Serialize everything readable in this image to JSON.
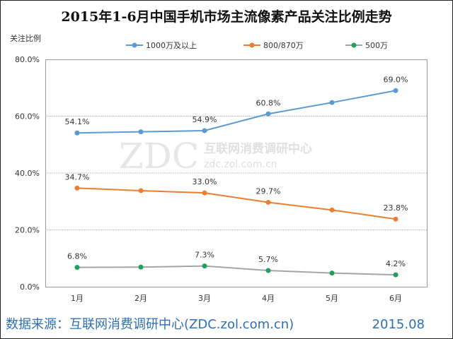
{
  "chart_data": {
    "type": "line",
    "title": "2015年1-6月中国手机市场主流像素产品关注比例走势",
    "ylabel": "关注比例",
    "xlabel": "",
    "categories": [
      "1月",
      "2月",
      "3月",
      "4月",
      "5月",
      "6月"
    ],
    "ylim": [
      0,
      80
    ],
    "yticks": [
      "0.0%",
      "20.0%",
      "40.0%",
      "60.0%",
      "80.0%"
    ],
    "series": [
      {
        "name": "1000万及以上",
        "color": "#5b9bd5",
        "values": [
          54.1,
          54.5,
          54.9,
          60.8,
          64.8,
          69.0
        ],
        "labels": [
          "54.1%",
          "",
          "54.9%",
          "60.8%",
          "",
          "69.0%"
        ]
      },
      {
        "name": "800/870万",
        "color": "#ed7d31",
        "values": [
          34.7,
          33.8,
          33.0,
          29.7,
          27.0,
          23.8
        ],
        "labels": [
          "34.7%",
          "",
          "33.0%",
          "29.7%",
          "",
          "23.8%"
        ]
      },
      {
        "name": "500万",
        "color": "#a5a5a5",
        "marker": "#1fa05a",
        "values": [
          6.8,
          6.9,
          7.3,
          5.7,
          4.8,
          4.2
        ],
        "labels": [
          "6.8%",
          "",
          "7.3%",
          "5.7%",
          "",
          "4.2%"
        ]
      }
    ],
    "legend_position": "top",
    "grid": true
  },
  "watermark": {
    "logo": "ZDC",
    "name": "互联网消费调研中心",
    "url": "zdc.zol.com.cn"
  },
  "footer": {
    "source": "数据来源：互联网消费调研中心(ZDC.zol.com.cn)",
    "date": "2015.08"
  }
}
